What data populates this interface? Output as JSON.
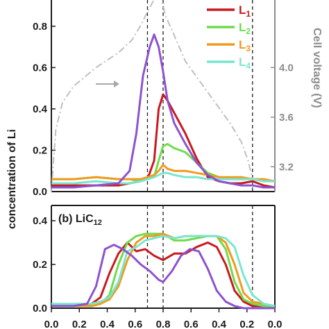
{
  "chart_data": [
    {
      "type": "line",
      "panel": "top",
      "ylabel": "concentration of Li",
      "y2label": "Cell voltage (V)",
      "ylim": [
        0,
        0.9
      ],
      "y2lim": [
        3.0,
        4.5
      ],
      "xlim": [
        0,
        10
      ],
      "yticks": [
        "0.0",
        "0.2",
        "0.4",
        "0.6",
        "0.8"
      ],
      "yticks_values": [
        0,
        0.2,
        0.4,
        0.6,
        0.8
      ],
      "y2ticks": [
        "3.2",
        "3.6",
        "4.0"
      ],
      "y2ticks_values": [
        3.2,
        3.6,
        4.0
      ],
      "vlines": [
        4.3,
        5.0,
        9.0
      ],
      "legend_position": "top-right",
      "series": [
        {
          "name": "L",
          "sub": "1",
          "color": "#c8191e",
          "x": [
            0,
            1,
            2,
            3,
            3.5,
            4,
            4.3,
            4.6,
            4.8,
            5.0,
            5.2,
            5.5,
            6,
            6.5,
            7,
            7.5,
            8,
            8.5,
            9,
            9.5,
            10
          ],
          "y": [
            0.03,
            0.03,
            0.03,
            0.03,
            0.04,
            0.05,
            0.06,
            0.15,
            0.4,
            0.47,
            0.44,
            0.38,
            0.28,
            0.16,
            0.07,
            0.05,
            0.04,
            0.04,
            0.05,
            0.03,
            0.02
          ]
        },
        {
          "name": "L",
          "sub": "2",
          "color": "#6edc4a",
          "x": [
            0,
            1,
            2,
            3,
            3.5,
            4,
            4.3,
            4.6,
            4.8,
            5.0,
            5.2,
            5.5,
            6,
            6.5,
            7,
            7.5,
            8,
            8.5,
            9,
            9.5,
            10
          ],
          "y": [
            0.06,
            0.06,
            0.07,
            0.06,
            0.06,
            0.05,
            0.06,
            0.07,
            0.15,
            0.22,
            0.23,
            0.21,
            0.19,
            0.14,
            0.09,
            0.07,
            0.06,
            0.06,
            0.06,
            0.05,
            0.05
          ]
        },
        {
          "name": "L",
          "sub": "3",
          "color": "#f09a1e",
          "x": [
            0,
            1,
            2,
            3,
            3.5,
            4,
            4.3,
            4.6,
            4.8,
            5.0,
            5.2,
            5.5,
            6,
            6.5,
            7,
            7.5,
            8,
            8.5,
            9,
            9.5,
            10
          ],
          "y": [
            0.06,
            0.06,
            0.07,
            0.06,
            0.06,
            0.06,
            0.07,
            0.08,
            0.1,
            0.13,
            0.11,
            0.1,
            0.1,
            0.09,
            0.08,
            0.07,
            0.07,
            0.07,
            0.06,
            0.06,
            0.05
          ]
        },
        {
          "name": "L",
          "sub": "4",
          "color": "#78e6d0",
          "x": [
            0,
            1,
            2,
            3,
            3.5,
            4,
            4.3,
            4.6,
            4.8,
            5.0,
            5.2,
            5.5,
            6,
            6.5,
            7,
            7.5,
            8,
            8.5,
            9,
            9.5,
            10
          ],
          "y": [
            0.04,
            0.04,
            0.05,
            0.04,
            0.04,
            0.05,
            0.06,
            0.07,
            0.08,
            0.09,
            0.09,
            0.08,
            0.07,
            0.07,
            0.06,
            0.06,
            0.06,
            0.06,
            0.06,
            0.05,
            0.05
          ]
        },
        {
          "name": "",
          "color": "#8c52cf",
          "x": [
            0,
            1,
            2,
            3,
            3.5,
            3.8,
            4.1,
            4.4,
            4.6,
            4.8,
            5.0,
            5.2,
            5.5,
            6,
            6.5,
            7,
            7.5,
            8,
            8.5,
            9,
            9.5,
            10
          ],
          "y": [
            0.02,
            0.02,
            0.03,
            0.04,
            0.1,
            0.28,
            0.56,
            0.7,
            0.76,
            0.7,
            0.58,
            0.44,
            0.33,
            0.23,
            0.14,
            0.08,
            0.05,
            0.04,
            0.03,
            0.03,
            0.02,
            0.02
          ]
        }
      ],
      "voltage_curve": {
        "color": "#bfbfbf",
        "x": [
          0,
          0.2,
          0.5,
          1.0,
          2,
          3,
          3.6,
          4.0,
          4.3,
          4.6,
          4.9,
          5.0,
          5.1,
          5.4,
          6,
          7,
          8,
          8.5,
          8.8,
          9.0,
          9.3
        ],
        "y": [
          3.0,
          3.5,
          3.72,
          3.85,
          4.0,
          4.12,
          4.22,
          4.34,
          4.45,
          4.55,
          4.58,
          4.5,
          4.42,
          4.3,
          4.05,
          3.8,
          3.55,
          3.4,
          3.25,
          3.1,
          3.02
        ]
      }
    },
    {
      "type": "line",
      "panel": "bottom",
      "title": "(b) LiC",
      "title_sub": "12",
      "ylim": [
        0,
        0.4
      ],
      "xlim": [
        0,
        10
      ],
      "yticks": [
        "0.0",
        "0.2",
        "0.4"
      ],
      "yticks_values": [
        0,
        0.2,
        0.4
      ],
      "xticks": [
        "0.0",
        "0.2",
        "0.4",
        "0.6",
        "0.8",
        "0.6",
        "0.4",
        "0.2",
        "0.0"
      ],
      "xticks_values": [
        0,
        1.25,
        2.5,
        3.75,
        5.0,
        6.25,
        7.5,
        8.75,
        10
      ],
      "vlines": [
        4.3,
        5.0,
        9.0
      ],
      "series": [
        {
          "name": "L1",
          "color": "#c8191e",
          "x": [
            0,
            1,
            1.8,
            2.2,
            2.6,
            3.0,
            3.4,
            3.8,
            4.2,
            4.6,
            5.0,
            5.5,
            6,
            6.5,
            7,
            7.4,
            7.8,
            8.2,
            8.6,
            9,
            9.5,
            10
          ],
          "y": [
            0.01,
            0.01,
            0.02,
            0.05,
            0.16,
            0.25,
            0.3,
            0.26,
            0.27,
            0.24,
            0.22,
            0.25,
            0.25,
            0.28,
            0.3,
            0.28,
            0.2,
            0.08,
            0.03,
            0.01,
            0.01,
            0.0
          ]
        },
        {
          "name": "L2",
          "color": "#6edc4a",
          "x": [
            0,
            1,
            1.8,
            2.2,
            2.6,
            3.0,
            3.4,
            3.8,
            4.2,
            4.6,
            5.0,
            5.5,
            6,
            6.5,
            7,
            7.4,
            7.8,
            8.2,
            8.6,
            9,
            9.5,
            10
          ],
          "y": [
            0.01,
            0.01,
            0.01,
            0.02,
            0.06,
            0.2,
            0.3,
            0.33,
            0.34,
            0.34,
            0.34,
            0.31,
            0.31,
            0.32,
            0.33,
            0.33,
            0.27,
            0.12,
            0.04,
            0.02,
            0.01,
            0.0
          ]
        },
        {
          "name": "L3",
          "color": "#f09a1e",
          "x": [
            0,
            1,
            1.8,
            2.2,
            2.6,
            3.0,
            3.4,
            3.8,
            4.2,
            4.6,
            5.0,
            5.5,
            6,
            6.5,
            7,
            7.4,
            7.8,
            8.2,
            8.6,
            9,
            9.5,
            10
          ],
          "y": [
            0.01,
            0.01,
            0.01,
            0.02,
            0.04,
            0.1,
            0.22,
            0.3,
            0.33,
            0.33,
            0.34,
            0.32,
            0.33,
            0.33,
            0.33,
            0.33,
            0.3,
            0.2,
            0.07,
            0.03,
            0.02,
            0.01
          ]
        },
        {
          "name": "L4",
          "color": "#78e6d0",
          "x": [
            0,
            1,
            1.8,
            2.2,
            2.6,
            3.0,
            3.4,
            3.8,
            4.2,
            4.6,
            5.0,
            5.5,
            6,
            6.5,
            7,
            7.4,
            7.8,
            8.2,
            8.6,
            9,
            9.5,
            10
          ],
          "y": [
            0.02,
            0.02,
            0.02,
            0.03,
            0.05,
            0.12,
            0.26,
            0.28,
            0.31,
            0.32,
            0.33,
            0.32,
            0.33,
            0.33,
            0.33,
            0.33,
            0.32,
            0.28,
            0.15,
            0.06,
            0.02,
            0.01
          ]
        },
        {
          "name": "",
          "color": "#8c52cf",
          "x": [
            0,
            1,
            1.6,
            2.0,
            2.4,
            2.8,
            3.2,
            3.6,
            4.0,
            4.4,
            4.8,
            5.0,
            5.4,
            5.8,
            6.2,
            6.6,
            7.0,
            7.4,
            7.8,
            8.2,
            8.6,
            9,
            10
          ],
          "y": [
            0.01,
            0.01,
            0.02,
            0.1,
            0.27,
            0.29,
            0.27,
            0.24,
            0.2,
            0.17,
            0.13,
            0.12,
            0.17,
            0.24,
            0.27,
            0.26,
            0.18,
            0.08,
            0.03,
            0.01,
            0.0,
            0.0,
            0.0
          ]
        }
      ]
    }
  ]
}
